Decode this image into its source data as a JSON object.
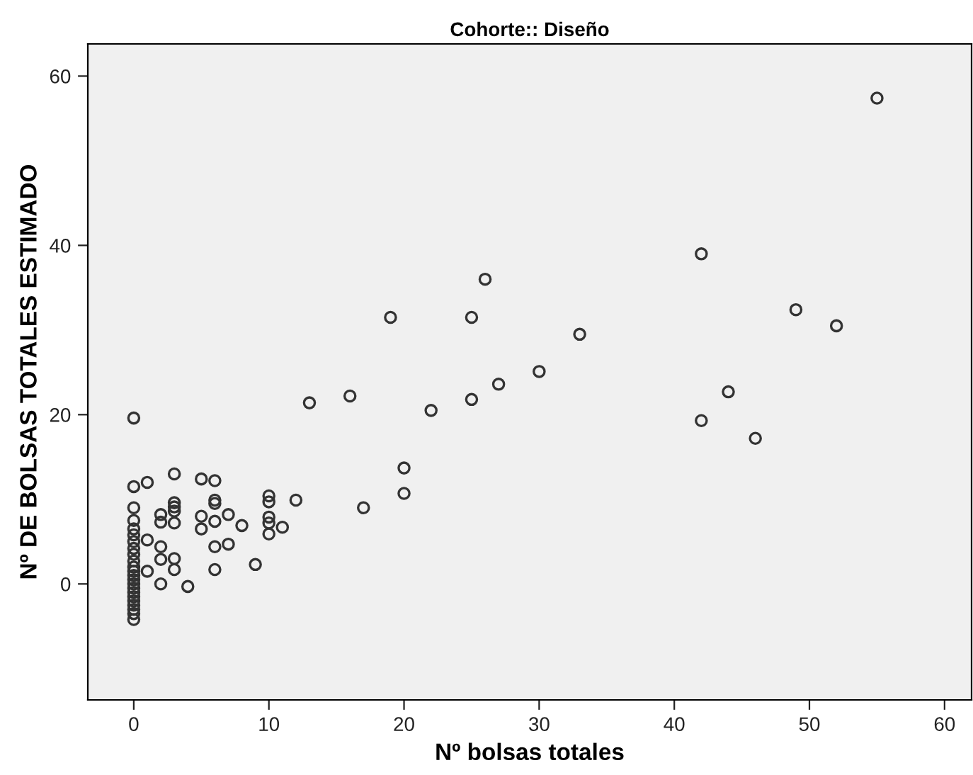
{
  "chart_data": {
    "type": "scatter",
    "title": "Cohorte:: Diseño",
    "xlabel": "Nº bolsas totales",
    "ylabel": "Nº DE BOLSAS TOTALES ESTIMADO",
    "marker": "circle",
    "grid": false,
    "legend": false,
    "xlim": [
      -3.4,
      62
    ],
    "ylim": [
      -13.7,
      63.8
    ],
    "xticks": [
      0,
      10,
      20,
      30,
      40,
      50,
      60
    ],
    "yticks": [
      0,
      20,
      40,
      60
    ],
    "series": [
      {
        "color": "#333333",
        "x": [
          55,
          42,
          26,
          19,
          25,
          49,
          52,
          33,
          30,
          27,
          16,
          13,
          22,
          25,
          44,
          42,
          46,
          0,
          20,
          20,
          17,
          12,
          11,
          10,
          10,
          10,
          10,
          10,
          9,
          8,
          7,
          7,
          6,
          6,
          6,
          6,
          6,
          6,
          5,
          5,
          5,
          4,
          3,
          3,
          3,
          3,
          3,
          3,
          3,
          2,
          2,
          2,
          2,
          2,
          1,
          1,
          1,
          0,
          0,
          0,
          0,
          0,
          0,
          0,
          0,
          0,
          0,
          0,
          0,
          0,
          0,
          0,
          0,
          0,
          0,
          0,
          0,
          0,
          0
        ],
        "values": [
          57.4,
          39,
          36,
          31.5,
          31.5,
          32.4,
          30.5,
          29.5,
          25.1,
          23.6,
          22.2,
          21.4,
          20.5,
          21.8,
          22.7,
          19.3,
          17.2,
          19.6,
          13.7,
          10.7,
          9.0,
          9.9,
          6.7,
          10.4,
          9.7,
          7.9,
          7.2,
          5.9,
          2.3,
          6.9,
          8.2,
          4.7,
          12.2,
          9.9,
          9.5,
          7.4,
          4.4,
          1.7,
          12.4,
          8.0,
          6.5,
          -0.3,
          13,
          9.6,
          9.1,
          8.6,
          7.2,
          3,
          1.7,
          8.2,
          7.3,
          4.4,
          2.9,
          0,
          12,
          5.2,
          1.5,
          11.5,
          9,
          7.5,
          6.5,
          5.8,
          5,
          4.2,
          3.5,
          2.7,
          2,
          1.5,
          1,
          0.5,
          0,
          -0.5,
          -1,
          -1.5,
          -2,
          -2.5,
          -3,
          -3.5,
          -4.2
        ]
      }
    ]
  }
}
